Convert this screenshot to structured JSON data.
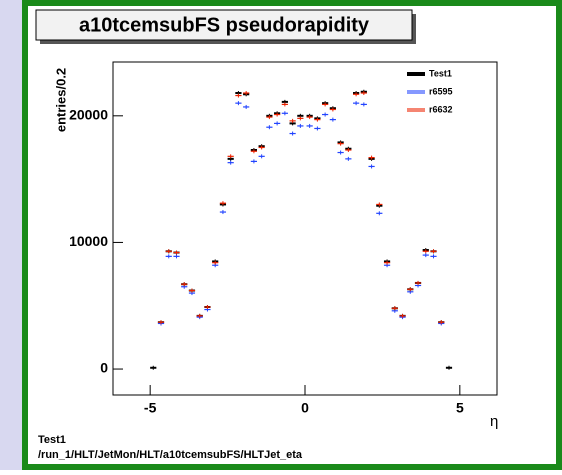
{
  "chart_data": {
    "type": "scatter",
    "title": "a10tcemsubFS pseudorapidity",
    "x_label": "η",
    "y_label": "entries/0.2",
    "x": [
      -4.9,
      -4.65,
      -4.4,
      -4.15,
      -3.9,
      -3.65,
      -3.4,
      -3.15,
      -2.9,
      -2.65,
      -2.4,
      -2.15,
      -1.9,
      -1.65,
      -1.4,
      -1.15,
      -0.9,
      -0.65,
      -0.4,
      -0.15,
      0.15,
      0.4,
      0.65,
      0.9,
      1.15,
      1.4,
      1.65,
      1.9,
      2.15,
      2.4,
      2.65,
      2.9,
      3.15,
      3.4,
      3.65,
      3.9,
      4.15,
      4.4,
      4.65,
      4.9
    ],
    "series": [
      {
        "name": "Test1",
        "color": "#000000",
        "values": [
          100,
          3700,
          9300,
          9200,
          6700,
          6200,
          4200,
          4900,
          8500,
          13000,
          16600,
          21800,
          21700,
          17300,
          17600,
          20000,
          20200,
          21100,
          19400,
          20000,
          20000,
          19800,
          21000,
          20600,
          17900,
          17400,
          21800,
          21900,
          16600,
          12900,
          8500,
          4800,
          4200,
          6300,
          6800,
          9400,
          9300,
          3700,
          100,
          null
        ]
      },
      {
        "name": "r6595",
        "color": "#2244ff",
        "values": [
          null,
          3600,
          8900,
          8900,
          6500,
          6000,
          4100,
          4700,
          8200,
          12400,
          16300,
          21000,
          20700,
          16400,
          16800,
          19100,
          19400,
          20200,
          18600,
          19200,
          19200,
          19000,
          20100,
          19700,
          17100,
          16600,
          21000,
          20900,
          16000,
          12300,
          8200,
          4600,
          4100,
          6100,
          6600,
          9000,
          8900,
          3600,
          null,
          null
        ]
      },
      {
        "name": "r6632",
        "color": "#ee2200",
        "values": [
          null,
          3700,
          9300,
          9200,
          6700,
          6200,
          4200,
          4900,
          8400,
          13100,
          16800,
          21600,
          21800,
          17200,
          17500,
          19900,
          20100,
          20900,
          19600,
          19800,
          19900,
          19700,
          20900,
          20500,
          17800,
          17300,
          21700,
          21800,
          16700,
          13000,
          8400,
          4800,
          4200,
          6300,
          6800,
          9300,
          9300,
          3700,
          null,
          null
        ]
      }
    ],
    "xlim": [
      -6.2,
      6.2
    ],
    "ylim": [
      -2050,
      24250
    ],
    "xticks": [
      -5,
      0,
      5
    ],
    "yticks": [
      0,
      10000,
      20000
    ],
    "legend": "top-right",
    "footer": [
      "Test1",
      "/run_1/HLT/JetMon/HLT/a10tcemsubFS/HLTJet_eta"
    ]
  }
}
